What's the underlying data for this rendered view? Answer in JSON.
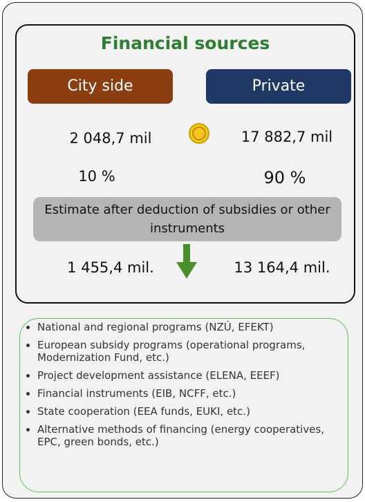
{
  "title": "Financial sources",
  "columns": [
    {
      "label": "City side",
      "total": "2 048,7 mil",
      "share": "10 %",
      "after": "1 455,4 mil."
    },
    {
      "label": "Private",
      "total": "17 882,7 mil",
      "share": "90 %",
      "after": "13 164,4 mil."
    }
  ],
  "note": "Estimate after deduction of subsidies or other instruments",
  "list": [
    "National and regional programs (NZÚ, EFEKT)",
    "European subsidy programs (operational programs, Modernization Fund, etc.)",
    "Project development assistance (ELENA, EEEF)",
    "Financial instruments (EIB, NCFF, etc.)",
    "State cooperation (EEA funds, EUKI, etc.)",
    "Alternative methods of financing (energy cooperatives, EPC, green bonds, etc.)"
  ]
}
